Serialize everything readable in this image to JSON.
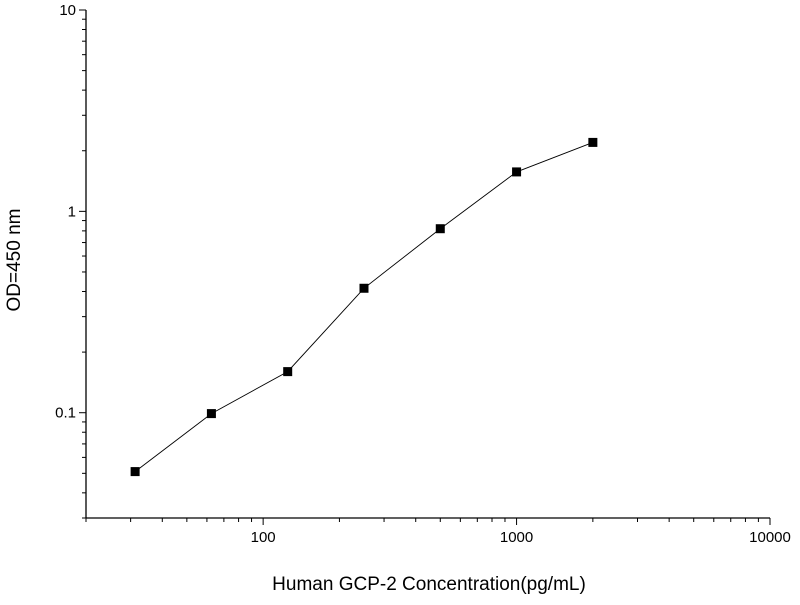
{
  "chart_data": {
    "type": "line",
    "title": "",
    "xlabel": "Human GCP-2  Concentration(pg/mL)",
    "ylabel": "OD=450 nm",
    "x_scale": "log",
    "y_scale": "log",
    "xlim": [
      20,
      10000
    ],
    "ylim": [
      0.03,
      10
    ],
    "x_ticks": [
      {
        "value": 100,
        "label": "100"
      },
      {
        "value": 1000,
        "label": "1000"
      },
      {
        "value": 10000,
        "label": "10000"
      }
    ],
    "y_ticks": [
      {
        "value": 0.1,
        "label": "0.1"
      },
      {
        "value": 1,
        "label": "1"
      },
      {
        "value": 10,
        "label": "10"
      }
    ],
    "grid": false,
    "legend": "none",
    "series": [
      {
        "x": [
          31.25,
          62.5,
          125,
          250,
          500,
          1000,
          2000
        ],
        "y": [
          0.051,
          0.099,
          0.16,
          0.415,
          0.82,
          1.57,
          2.2
        ],
        "color": "#000000",
        "marker": "square"
      }
    ]
  }
}
